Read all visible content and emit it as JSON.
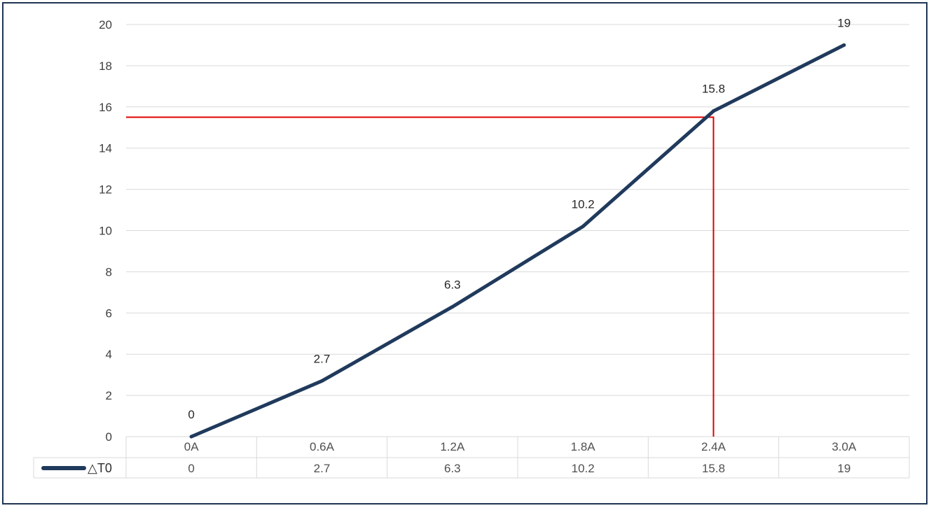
{
  "chart_data": {
    "type": "line",
    "categories": [
      "0A",
      "0.6A",
      "1.2A",
      "1.8A",
      "2.4A",
      "3.0A"
    ],
    "series": [
      {
        "name": "△T0",
        "values": [
          0,
          2.7,
          6.3,
          10.2,
          15.8,
          19
        ],
        "value_labels": [
          "0",
          "2.7",
          "6.3",
          "10.2",
          "15.8",
          "19"
        ],
        "color": "#203a5c"
      }
    ],
    "ylim": [
      0,
      20
    ],
    "yticks": [
      "0",
      "2",
      "4",
      "6",
      "8",
      "10",
      "12",
      "14",
      "16",
      "18",
      "20"
    ],
    "grid": true,
    "data_table": true,
    "reference_marker": {
      "x": 2.4,
      "y": 15.5,
      "color": "#e00000"
    }
  },
  "colors": {
    "frame": "#1f3553",
    "grid": "#d9d9d9",
    "line": "#203a5c",
    "reference": "#e00000"
  }
}
